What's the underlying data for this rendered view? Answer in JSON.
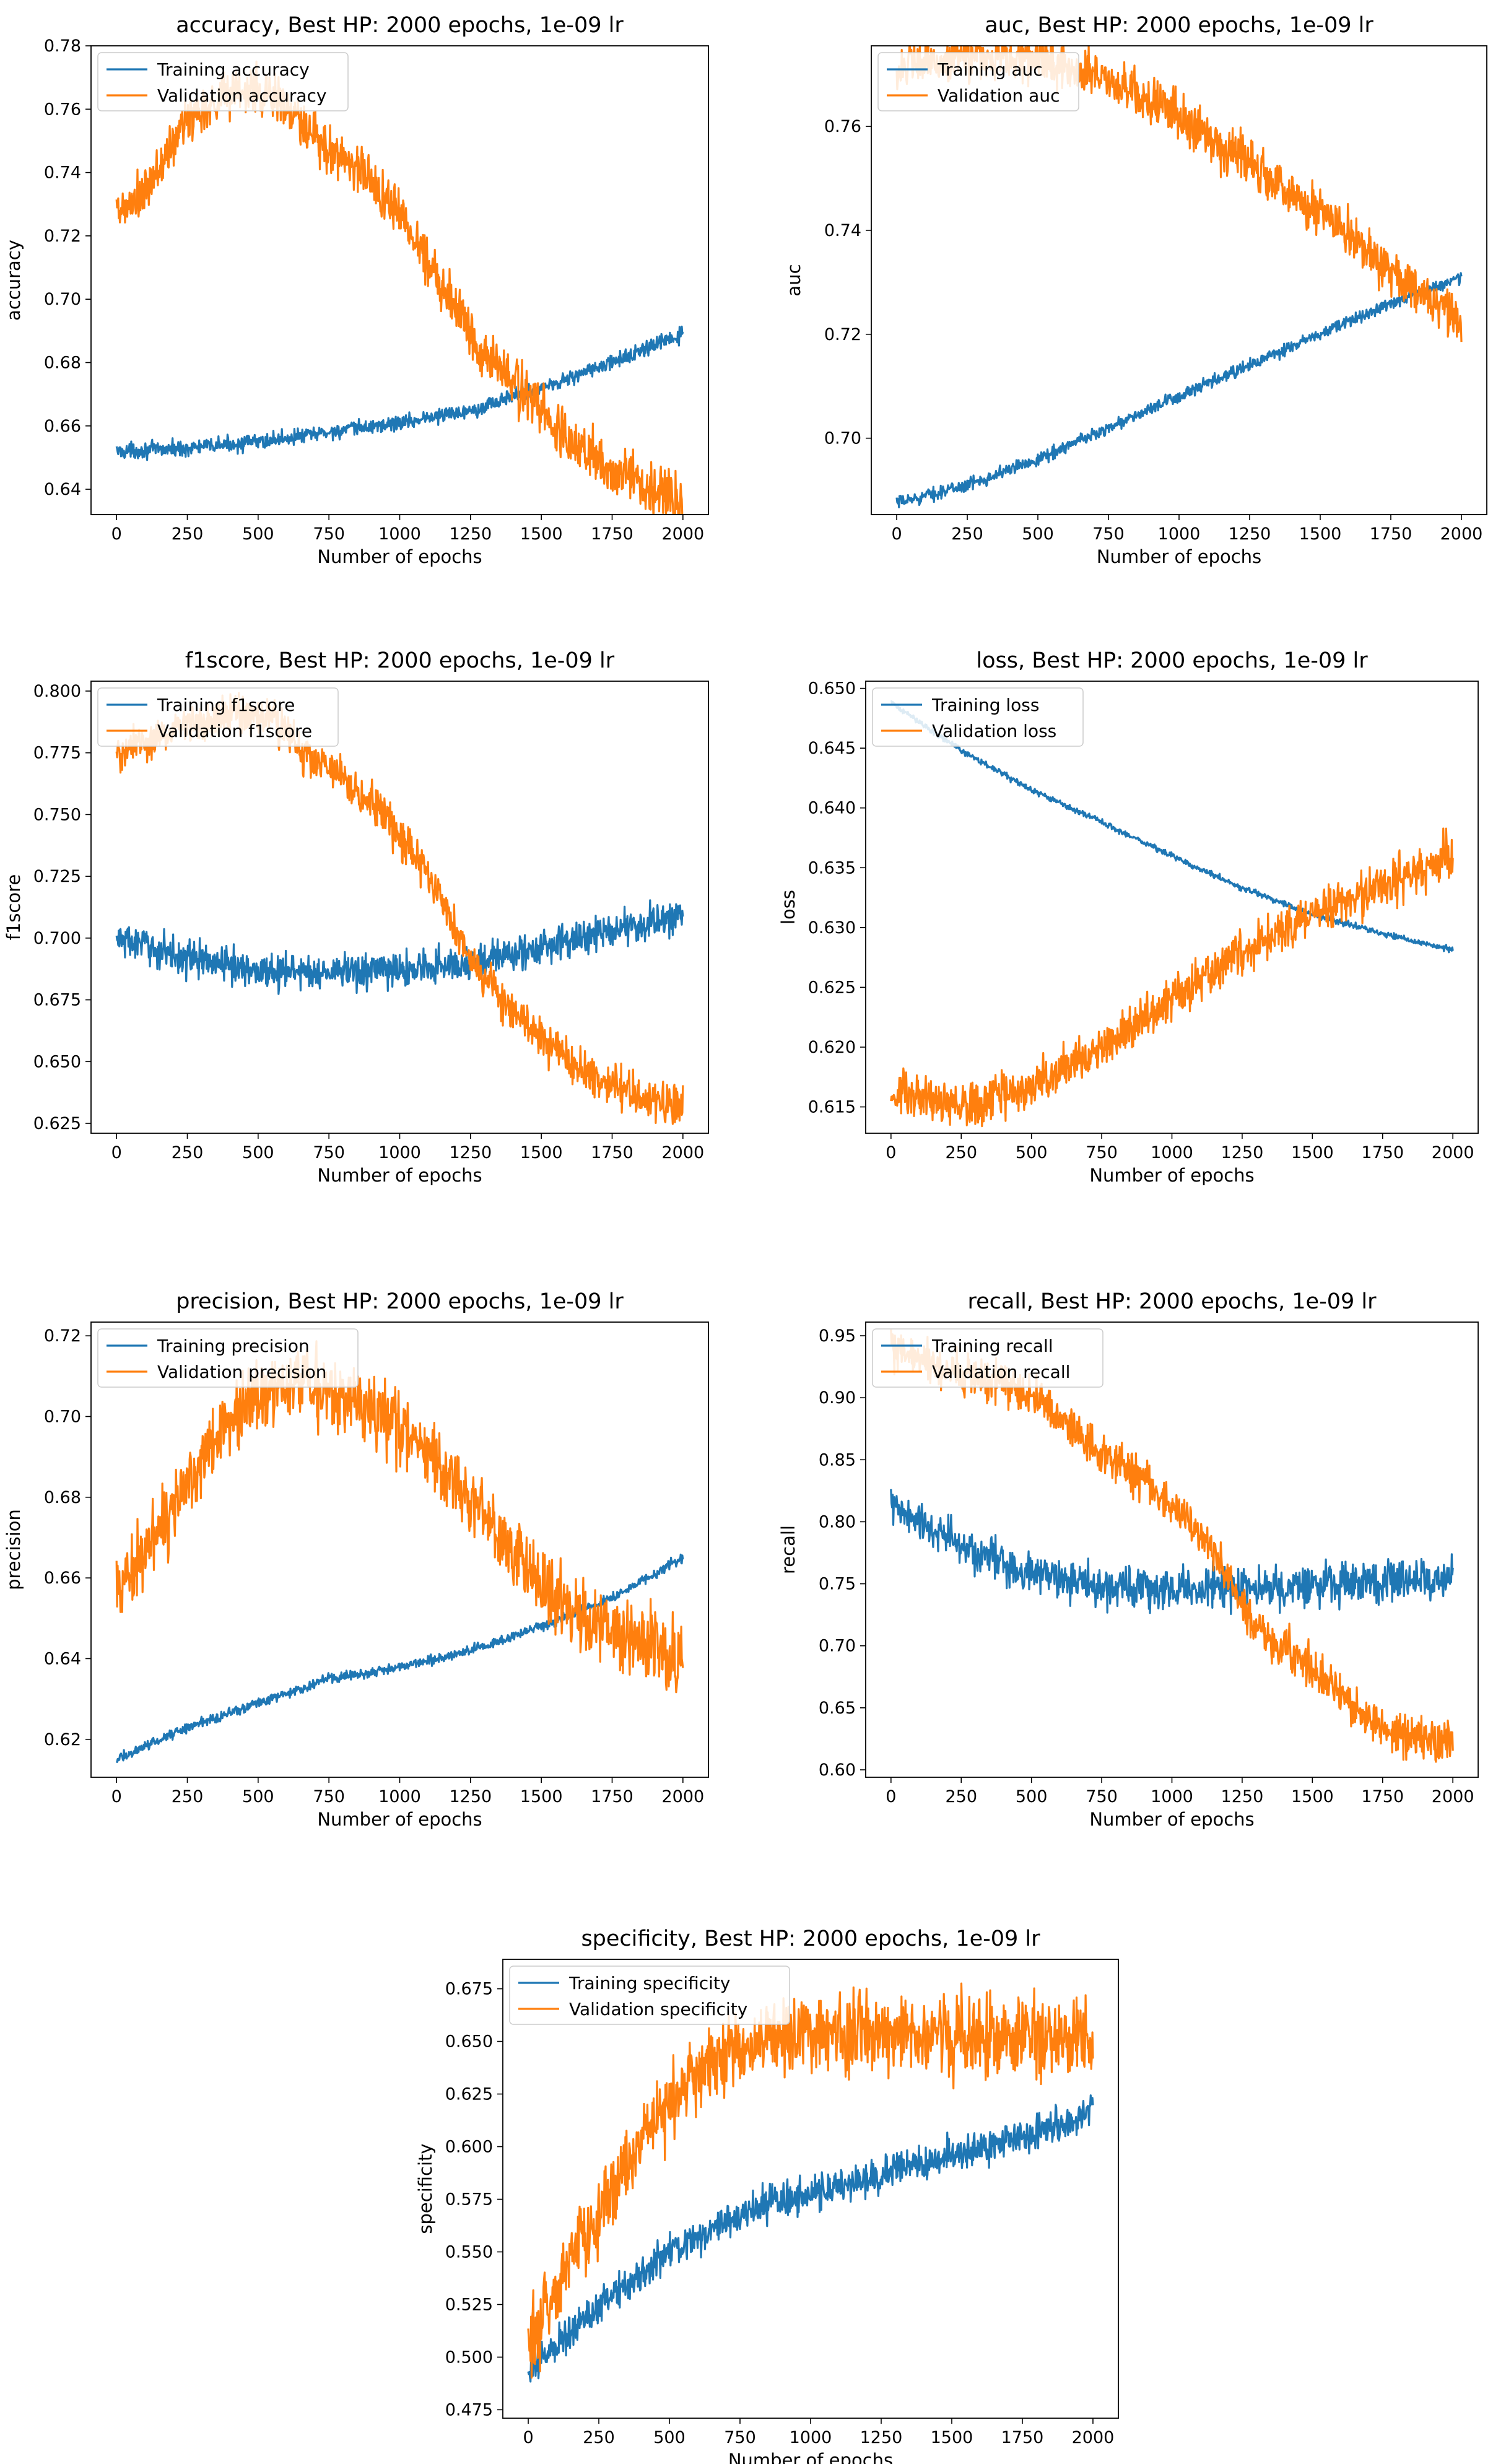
{
  "colors": {
    "training": "#1f77b4",
    "validation": "#ff7f0e"
  },
  "chart_data": [
    {
      "type": "line",
      "title": "accuracy, Best HP: 2000 epochs, 1e-09 lr",
      "xlabel": "Number of epochs",
      "ylabel": "accuracy",
      "xlim": [
        -90,
        2090
      ],
      "ylim": [
        0.632,
        0.78
      ],
      "xticks": [
        "0",
        "250",
        "500",
        "750",
        "1000",
        "1250",
        "1500",
        "1750",
        "2000"
      ],
      "yticks": [
        "0.64",
        "0.66",
        "0.68",
        "0.70",
        "0.72",
        "0.74",
        "0.76",
        "0.78"
      ],
      "grid": false,
      "legend_position": "top-left",
      "series": [
        {
          "name": "Training accuracy",
          "noise": 0.0012,
          "x": [
            0,
            250,
            500,
            750,
            1000,
            1250,
            1500,
            1750,
            2000
          ],
          "y": [
            0.652,
            0.653,
            0.655,
            0.658,
            0.661,
            0.665,
            0.672,
            0.68,
            0.689
          ]
        },
        {
          "name": "Validation accuracy",
          "noise": 0.004,
          "x": [
            0,
            100,
            250,
            400,
            550,
            700,
            850,
            1000,
            1150,
            1300,
            1400,
            1500,
            1600,
            1750,
            1900,
            2000
          ],
          "y": [
            0.726,
            0.733,
            0.757,
            0.766,
            0.765,
            0.75,
            0.742,
            0.727,
            0.705,
            0.683,
            0.674,
            0.665,
            0.655,
            0.646,
            0.64,
            0.636
          ]
        }
      ]
    },
    {
      "type": "line",
      "title": "auc, Best HP: 2000 epochs, 1e-09 lr",
      "xlabel": "Number of epochs",
      "ylabel": "auc",
      "xlim": [
        -90,
        2090
      ],
      "ylim": [
        0.6853,
        0.7755
      ],
      "xticks": [
        "0",
        "250",
        "500",
        "750",
        "1000",
        "1250",
        "1500",
        "1750",
        "2000"
      ],
      "yticks": [
        "0.70",
        "0.72",
        "0.74",
        "0.76"
      ],
      "grid": false,
      "legend_position": "top-left",
      "series": [
        {
          "name": "Training auc",
          "noise": 0.0006,
          "x": [
            0,
            250,
            500,
            750,
            1000,
            1250,
            1500,
            1750,
            2000
          ],
          "y": [
            0.6875,
            0.691,
            0.696,
            0.702,
            0.708,
            0.714,
            0.72,
            0.726,
            0.731
          ]
        },
        {
          "name": "Validation auc",
          "noise": 0.0022,
          "x": [
            0,
            250,
            500,
            750,
            1000,
            1250,
            1500,
            1750,
            2000
          ],
          "y": [
            0.771,
            0.7735,
            0.773,
            0.769,
            0.762,
            0.753,
            0.743,
            0.732,
            0.722
          ]
        }
      ]
    },
    {
      "type": "line",
      "title": "f1score, Best HP: 2000 epochs, 1e-09 lr",
      "xlabel": "Number of epochs",
      "ylabel": "f1score",
      "xlim": [
        -90,
        2090
      ],
      "ylim": [
        0.621,
        0.804
      ],
      "xticks": [
        "0",
        "250",
        "500",
        "750",
        "1000",
        "1250",
        "1500",
        "1750",
        "2000"
      ],
      "yticks": [
        "0.625",
        "0.650",
        "0.675",
        "0.700",
        "0.725",
        "0.750",
        "0.775",
        "0.800"
      ],
      "grid": false,
      "legend_position": "top-left",
      "series": [
        {
          "name": "Training f1score",
          "noise": 0.0035,
          "x": [
            0,
            250,
            500,
            750,
            1000,
            1250,
            1500,
            1750,
            2000
          ],
          "y": [
            0.7,
            0.692,
            0.687,
            0.686,
            0.687,
            0.69,
            0.696,
            0.703,
            0.709
          ]
        },
        {
          "name": "Validation f1score",
          "noise": 0.004,
          "x": [
            0,
            100,
            250,
            400,
            550,
            650,
            800,
            950,
            1100,
            1250,
            1350,
            1500,
            1650,
            1800,
            2000
          ],
          "y": [
            0.774,
            0.779,
            0.787,
            0.791,
            0.789,
            0.776,
            0.764,
            0.749,
            0.727,
            0.692,
            0.675,
            0.659,
            0.646,
            0.638,
            0.632
          ]
        }
      ]
    },
    {
      "type": "line",
      "title": "loss, Best HP: 2000 epochs, 1e-09 lr",
      "xlabel": "Number of epochs",
      "ylabel": "loss",
      "xlim": [
        -90,
        2090
      ],
      "ylim": [
        0.6128,
        0.6506
      ],
      "xticks": [
        "0",
        "250",
        "500",
        "750",
        "1000",
        "1250",
        "1500",
        "1750",
        "2000"
      ],
      "yticks": [
        "0.615",
        "0.620",
        "0.625",
        "0.630",
        "0.635",
        "0.640",
        "0.645",
        "0.650"
      ],
      "grid": false,
      "legend_position": "top-left",
      "series": [
        {
          "name": "Training loss",
          "noise": 0.00012,
          "x": [
            0,
            250,
            500,
            750,
            1000,
            1250,
            1500,
            1750,
            2000
          ],
          "y": [
            0.6488,
            0.6448,
            0.6415,
            0.6388,
            0.636,
            0.6333,
            0.6311,
            0.6295,
            0.6281
          ]
        },
        {
          "name": "Validation loss",
          "noise": 0.0009,
          "x": [
            0,
            100,
            250,
            500,
            750,
            1000,
            1250,
            1500,
            1750,
            2000
          ],
          "y": [
            0.6165,
            0.6155,
            0.615,
            0.6168,
            0.62,
            0.624,
            0.628,
            0.631,
            0.6335,
            0.636
          ]
        }
      ]
    },
    {
      "type": "line",
      "title": "precision, Best HP: 2000 epochs, 1e-09 lr",
      "xlabel": "Number of epochs",
      "ylabel": "precision",
      "xlim": [
        -90,
        2090
      ],
      "ylim": [
        0.6106,
        0.7234
      ],
      "xticks": [
        "0",
        "250",
        "500",
        "750",
        "1000",
        "1250",
        "1500",
        "1750",
        "2000"
      ],
      "yticks": [
        "0.62",
        "0.64",
        "0.66",
        "0.68",
        "0.70",
        "0.72"
      ],
      "grid": false,
      "legend_position": "top-left",
      "series": [
        {
          "name": "Training precision",
          "noise": 0.0006,
          "x": [
            0,
            250,
            500,
            750,
            1000,
            1250,
            1500,
            1750,
            2000
          ],
          "y": [
            0.615,
            0.623,
            0.629,
            0.635,
            0.638,
            0.642,
            0.648,
            0.655,
            0.665
          ]
        },
        {
          "name": "Validation precision",
          "noise": 0.0045,
          "x": [
            0,
            150,
            300,
            450,
            600,
            750,
            900,
            1050,
            1200,
            1350,
            1500,
            1650,
            1800,
            2000
          ],
          "y": [
            0.658,
            0.67,
            0.69,
            0.703,
            0.708,
            0.707,
            0.702,
            0.694,
            0.683,
            0.67,
            0.659,
            0.65,
            0.646,
            0.64
          ]
        }
      ]
    },
    {
      "type": "line",
      "title": "recall, Best HP: 2000 epochs, 1e-09 lr",
      "xlabel": "Number of epochs",
      "ylabel": "recall",
      "xlim": [
        -90,
        2090
      ],
      "ylim": [
        0.594,
        0.961
      ],
      "xticks": [
        "0",
        "250",
        "500",
        "750",
        "1000",
        "1250",
        "1500",
        "1750",
        "2000"
      ],
      "yticks": [
        "0.60",
        "0.65",
        "0.70",
        "0.75",
        "0.80",
        "0.85",
        "0.90",
        "0.95"
      ],
      "grid": false,
      "legend_position": "top-left",
      "series": [
        {
          "name": "Training recall",
          "noise": 0.008,
          "x": [
            0,
            150,
            300,
            500,
            750,
            1000,
            1250,
            1500,
            1750,
            2000
          ],
          "y": [
            0.812,
            0.793,
            0.775,
            0.76,
            0.748,
            0.745,
            0.746,
            0.748,
            0.752,
            0.755
          ]
        },
        {
          "name": "Validation recall",
          "noise": 0.008,
          "x": [
            0,
            100,
            250,
            400,
            550,
            650,
            750,
            900,
            1050,
            1150,
            1250,
            1350,
            1500,
            1650,
            1800,
            2000
          ],
          "y": [
            0.94,
            0.93,
            0.92,
            0.911,
            0.895,
            0.872,
            0.853,
            0.833,
            0.805,
            0.775,
            0.73,
            0.705,
            0.682,
            0.65,
            0.63,
            0.622
          ]
        }
      ]
    },
    {
      "type": "line",
      "title": "specificity, Best HP: 2000 epochs, 1e-09 lr",
      "xlabel": "Number of epochs",
      "ylabel": "specificity",
      "xlim": [
        -90,
        2090
      ],
      "ylim": [
        0.471,
        0.689
      ],
      "xticks": [
        "0",
        "250",
        "500",
        "750",
        "1000",
        "1250",
        "1500",
        "1750",
        "2000"
      ],
      "yticks": [
        "0.475",
        "0.500",
        "0.525",
        "0.550",
        "0.575",
        "0.600",
        "0.625",
        "0.650",
        "0.675"
      ],
      "grid": false,
      "legend_position": "top-left",
      "series": [
        {
          "name": "Training specificity",
          "noise": 0.004,
          "x": [
            0,
            50,
            150,
            250,
            400,
            500,
            650,
            750,
            900,
            1000,
            1250,
            1500,
            1750,
            2000
          ],
          "y": [
            0.492,
            0.5,
            0.512,
            0.525,
            0.54,
            0.55,
            0.56,
            0.567,
            0.575,
            0.578,
            0.586,
            0.596,
            0.604,
            0.617
          ]
        },
        {
          "name": "Validation specificity",
          "noise": 0.009,
          "x": [
            0,
            50,
            150,
            250,
            350,
            450,
            550,
            650,
            750,
            900,
            1000,
            1250,
            1500,
            1750,
            2000
          ],
          "y": [
            0.51,
            0.52,
            0.545,
            0.57,
            0.595,
            0.612,
            0.628,
            0.64,
            0.648,
            0.652,
            0.653,
            0.654,
            0.654,
            0.653,
            0.652
          ]
        }
      ]
    }
  ]
}
